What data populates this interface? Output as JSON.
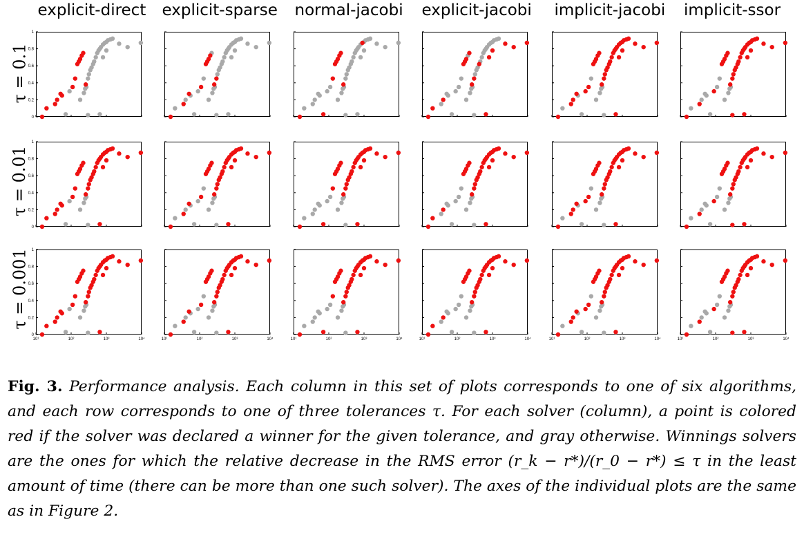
{
  "columns": [
    "explicit-direct",
    "explicit-sparse",
    "normal-jacobi",
    "explicit-jacobi",
    "implicit-jacobi",
    "implicit-ssor"
  ],
  "rows": [
    {
      "label": "τ = 0.1"
    },
    {
      "label": "τ = 0.01"
    },
    {
      "label": "τ = 0.001"
    }
  ],
  "colors": {
    "winner": "#ee1111",
    "other": "#a9a9a9",
    "axis": "#000000"
  },
  "chart_data": {
    "type": "scatter",
    "x_scale": "log",
    "xlim": [
      10,
      10000
    ],
    "ylim": [
      0,
      1
    ],
    "y_tick_labels": [
      "0",
      "0.2",
      "0.4",
      "0.6",
      "0.8",
      "1"
    ],
    "x_tick_labels": [
      "10¹",
      "10²",
      "10³",
      "10⁴"
    ],
    "points": [
      [
        15,
        0
      ],
      [
        20,
        0.1
      ],
      [
        35,
        0.15
      ],
      [
        40,
        0.2
      ],
      [
        50,
        0.27
      ],
      [
        55,
        0.25
      ],
      [
        70,
        0.03
      ],
      [
        90,
        0.3
      ],
      [
        110,
        0.35
      ],
      [
        130,
        0.45
      ],
      [
        150,
        0.62
      ],
      [
        165,
        0.65
      ],
      [
        180,
        0.68
      ],
      [
        200,
        0.72
      ],
      [
        220,
        0.75
      ],
      [
        260,
        0.38
      ],
      [
        300,
        0.45
      ],
      [
        320,
        0.5
      ],
      [
        350,
        0.55
      ],
      [
        380,
        0.58
      ],
      [
        420,
        0.62
      ],
      [
        450,
        0.65
      ],
      [
        500,
        0.7
      ],
      [
        550,
        0.75
      ],
      [
        600,
        0.78
      ],
      [
        650,
        0.8
      ],
      [
        700,
        0.82
      ],
      [
        800,
        0.85
      ],
      [
        900,
        0.87
      ],
      [
        1000,
        0.88
      ],
      [
        1100,
        0.9
      ],
      [
        1300,
        0.91
      ],
      [
        1500,
        0.92
      ],
      [
        180,
        0.2
      ],
      [
        230,
        0.28
      ],
      [
        250,
        0.33
      ],
      [
        270,
        0.35
      ],
      [
        300,
        0.02
      ],
      [
        650,
        0.03
      ],
      [
        800,
        0.7
      ],
      [
        1000,
        0.78
      ],
      [
        2300,
        0.86
      ],
      [
        4000,
        0.82
      ],
      [
        9500,
        0.87
      ]
    ],
    "winners": [
      [
        [
          0,
          1,
          2,
          3,
          4,
          5,
          8,
          9,
          10,
          11,
          12,
          13,
          14,
          15
        ],
        [
          0,
          2,
          4,
          8,
          10,
          11,
          12,
          13,
          15,
          16
        ],
        [
          0,
          6,
          9,
          10,
          11,
          12,
          13,
          14,
          15,
          28
        ],
        [
          0,
          1,
          3,
          10,
          11,
          12,
          14,
          15,
          16,
          20,
          38,
          39,
          40,
          41,
          42,
          43
        ],
        [
          0,
          2,
          3,
          4,
          7,
          8,
          10,
          11,
          12,
          13,
          14,
          15,
          16,
          17,
          18,
          19,
          20,
          21,
          22,
          23,
          24,
          25,
          26,
          27,
          28,
          29,
          30,
          31,
          32,
          38,
          39,
          40,
          41,
          42,
          43
        ],
        [
          0,
          2,
          7,
          10,
          11,
          12,
          13,
          14,
          15,
          16,
          17,
          18,
          19,
          20,
          21,
          22,
          23,
          24,
          25,
          26,
          27,
          28,
          29,
          30,
          31,
          32,
          37,
          38,
          39,
          40,
          41,
          42,
          43
        ]
      ],
      [
        [
          0,
          1,
          2,
          3,
          4,
          5,
          8,
          9,
          10,
          11,
          12,
          13,
          14,
          15,
          16,
          17,
          18,
          19,
          20,
          21,
          22,
          23,
          24,
          25,
          26,
          27,
          28,
          29,
          30,
          31,
          32,
          38,
          39,
          40,
          41,
          42,
          43
        ],
        [
          0,
          2,
          4,
          8,
          10,
          11,
          12,
          13,
          14,
          15,
          16,
          17,
          18,
          19,
          20,
          21,
          22,
          23,
          24,
          25,
          26,
          27,
          28,
          29,
          30,
          31,
          32,
          38,
          39,
          40,
          41,
          42,
          43
        ],
        [
          0,
          6,
          9,
          10,
          11,
          12,
          13,
          14,
          15,
          16,
          17,
          18,
          19,
          20,
          21,
          22,
          23,
          24,
          25,
          26,
          27,
          28,
          29,
          30,
          31,
          32,
          38,
          39,
          40,
          41,
          42,
          43
        ],
        [
          0,
          1,
          3,
          10,
          11,
          12,
          13,
          14,
          15,
          16,
          17,
          18,
          19,
          20,
          21,
          22,
          23,
          24,
          25,
          26,
          27,
          28,
          29,
          30,
          31,
          32,
          38,
          39,
          40,
          41,
          42,
          43
        ],
        [
          0,
          2,
          3,
          4,
          7,
          8,
          10,
          11,
          12,
          13,
          14,
          15,
          16,
          17,
          18,
          19,
          20,
          21,
          22,
          23,
          24,
          25,
          26,
          27,
          28,
          29,
          30,
          31,
          32,
          38,
          39,
          40,
          41,
          42,
          43
        ],
        [
          0,
          2,
          7,
          10,
          11,
          12,
          13,
          14,
          15,
          16,
          17,
          18,
          19,
          20,
          21,
          22,
          23,
          24,
          25,
          26,
          27,
          28,
          29,
          30,
          31,
          32,
          37,
          38,
          39,
          40,
          41,
          42,
          43
        ]
      ],
      [
        [
          0,
          1,
          2,
          3,
          4,
          5,
          8,
          9,
          10,
          11,
          12,
          13,
          14,
          15,
          16,
          17,
          18,
          19,
          20,
          21,
          22,
          23,
          24,
          25,
          26,
          27,
          28,
          29,
          30,
          31,
          32,
          38,
          39,
          40,
          41,
          42,
          43
        ],
        [
          0,
          2,
          4,
          8,
          10,
          11,
          12,
          13,
          14,
          15,
          16,
          17,
          18,
          19,
          20,
          21,
          22,
          23,
          24,
          25,
          26,
          27,
          28,
          29,
          30,
          31,
          32,
          38,
          39,
          40,
          41,
          42,
          43
        ],
        [
          0,
          6,
          9,
          10,
          11,
          12,
          13,
          14,
          15,
          16,
          17,
          18,
          19,
          20,
          21,
          22,
          23,
          24,
          25,
          26,
          27,
          28,
          29,
          30,
          31,
          32,
          38,
          39,
          40,
          41,
          42,
          43
        ],
        [
          0,
          1,
          3,
          10,
          11,
          12,
          13,
          14,
          15,
          16,
          17,
          18,
          19,
          20,
          21,
          22,
          23,
          24,
          25,
          26,
          27,
          28,
          29,
          30,
          31,
          32,
          38,
          39,
          40,
          41,
          42,
          43
        ],
        [
          0,
          2,
          3,
          4,
          7,
          8,
          10,
          11,
          12,
          13,
          14,
          15,
          16,
          17,
          18,
          19,
          20,
          21,
          22,
          23,
          24,
          25,
          26,
          27,
          28,
          29,
          30,
          31,
          32,
          38,
          39,
          40,
          41,
          42,
          43
        ],
        [
          0,
          2,
          7,
          10,
          11,
          12,
          13,
          14,
          15,
          16,
          17,
          18,
          19,
          20,
          21,
          22,
          23,
          24,
          25,
          26,
          27,
          28,
          29,
          30,
          31,
          32,
          37,
          38,
          39,
          40,
          41,
          42,
          43
        ]
      ]
    ]
  },
  "caption": {
    "label": "Fig. 3.",
    "text": "Performance analysis. Each column in this set of plots corresponds to one of six algorithms, and each row corresponds to one of three tolerances τ. For each solver (column), a point is colored red if the solver was declared a winner for the given tolerance, and gray otherwise. Winnings solvers are the ones for which the relative decrease in the RMS error (r_k − r*)/(r_0 − r*) ≤ τ in the least amount of time (there can be more than one such solver). The axes of the individual plots are the same as in Figure 2."
  }
}
